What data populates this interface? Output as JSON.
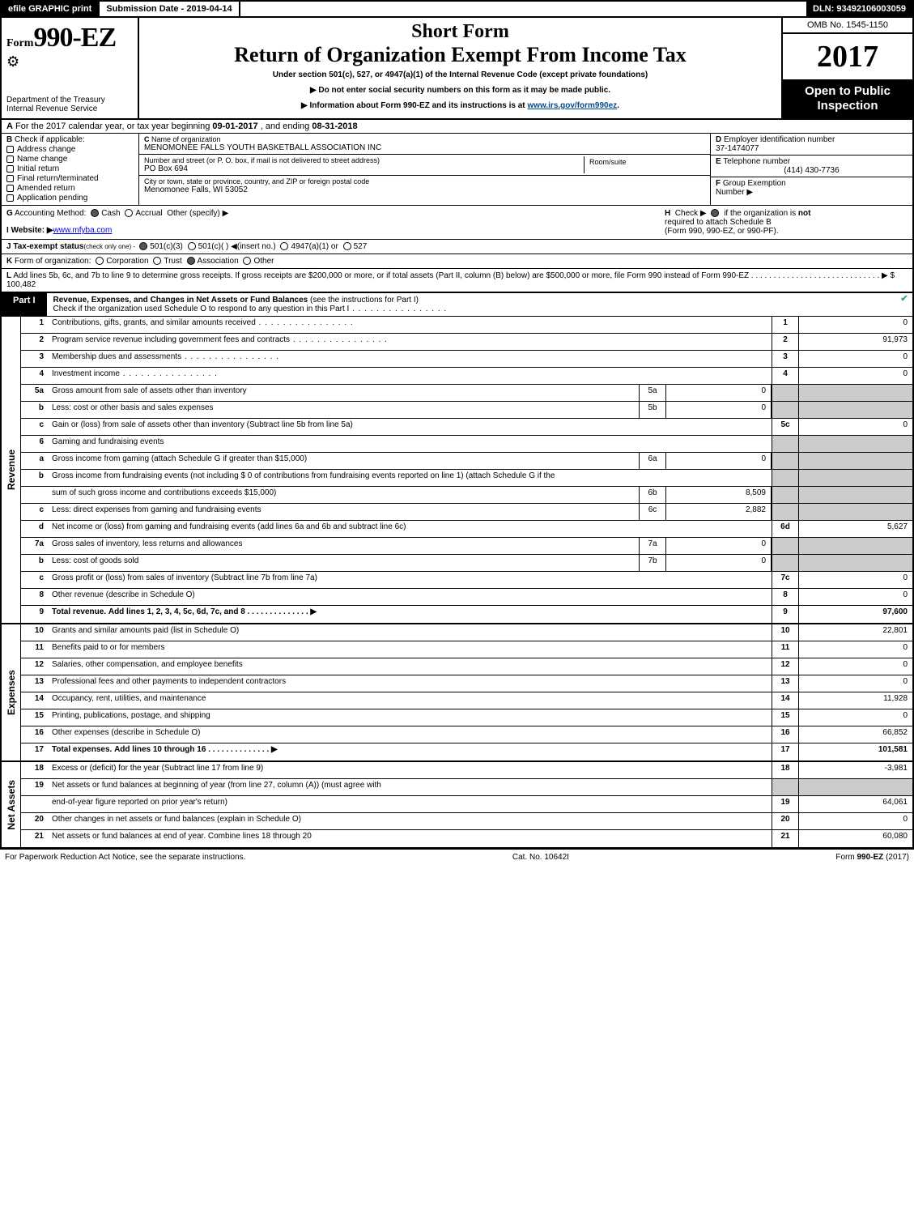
{
  "topbar": {
    "efile": "efile GRAPHIC print",
    "subdate_lbl": "Submission Date - ",
    "subdate": "2019-04-14",
    "dln_lbl": "DLN: ",
    "dln": "93492106003059"
  },
  "header": {
    "form_lbl": "Form",
    "form_num": "990-EZ",
    "dept1": "Department of the Treasury",
    "dept2": "Internal Revenue Service",
    "short": "Short Form",
    "title": "Return of Organization Exempt From Income Tax",
    "under": "Under section 501(c), 527, or 4947(a)(1) of the Internal Revenue Code (except private foundations)",
    "bullet1": "▶ Do not enter social security numbers on this form as it may be made public.",
    "bullet2_pre": "▶ Information about Form 990-EZ and its instructions is at ",
    "bullet2_link": "www.irs.gov/form990ez",
    "omb": "OMB No. 1545-1150",
    "year": "2017",
    "open1": "Open to Public",
    "open2": "Inspection"
  },
  "rowA": {
    "A": "A",
    "txt1": "For the 2017 calendar year, or tax year beginning ",
    "d1": "09-01-2017",
    "txt2": ", and ending ",
    "d2": "08-31-2018"
  },
  "entity": {
    "B": "B",
    "B_txt": "Check if applicable:",
    "checks": [
      "Address change",
      "Name change",
      "Initial return",
      "Final return/terminated",
      "Amended return",
      "Application pending"
    ],
    "C": "C",
    "C_lbl": "Name of organization",
    "C_val": "MENOMONEE FALLS YOUTH BASKETBALL ASSOCIATION INC",
    "addr_lbl": "Number and street (or P. O. box, if mail is not delivered to street address)",
    "addr_val": "PO Box 694",
    "room_lbl": "Room/suite",
    "city_lbl": "City or town, state or province, country, and ZIP or foreign postal code",
    "city_val": "Menomonee Falls, WI  53052",
    "D": "D",
    "D_lbl": "Employer identification number",
    "D_val": "37-1474077",
    "E": "E",
    "E_lbl": "Telephone number",
    "E_val": "(414) 430-7736",
    "F": "F",
    "F_lbl": "Group Exemption",
    "F_lbl2": "Number",
    "F_arr": "▶"
  },
  "mid": {
    "G": "G",
    "G_txt": "Accounting Method:",
    "G_cash": "Cash",
    "G_acc": "Accrual",
    "G_oth": "Other (specify) ▶",
    "H": "H",
    "H_txt1": "Check ▶",
    "H_txt2": "if the organization is ",
    "H_not": "not",
    "H_txt3": "required to attach Schedule B",
    "H_txt4": "(Form 990, 990-EZ, or 990-PF).",
    "I": "I",
    "I_lbl": "Website: ▶",
    "I_val": "www.mfyba.com",
    "J": "J",
    "J_txt": "Tax-exempt status",
    "J_sub": "(check only one) - ",
    "J_a": "501(c)(3)",
    "J_b": "501(c)(  )",
    "J_bi": "◀(insert no.)",
    "J_c": "4947(a)(1) or",
    "J_d": "527",
    "K": "K",
    "K_txt": "Form of organization:",
    "K_a": "Corporation",
    "K_b": "Trust",
    "K_c": "Association",
    "K_d": "Other",
    "L": "L",
    "L_txt": "Add lines 5b, 6c, and 7b to line 9 to determine gross receipts. If gross receipts are $200,000 or more, or if total assets (Part II, column (B) below) are $500,000 or more, file Form 990 instead of Form 990-EZ",
    "L_dots": " .  .  .  .  .  .  .  .  .  .  .  .  .  .  .  .  .  .  .  .  .  .  .  .  .  .  .  .  . ▶ ",
    "L_val": "$ 100,482"
  },
  "partI": {
    "lbl": "Part I",
    "title": "Revenue, Expenses, and Changes in Net Assets or Fund Balances ",
    "sub": "(see the instructions for Part I)",
    "check_line": "Check if the organization used Schedule O to respond to any question in this Part I"
  },
  "sections": {
    "revenue": {
      "label": "Revenue",
      "rows": [
        {
          "ln": "1",
          "desc": "Contributions, gifts, grants, and similar amounts received",
          "type": "main",
          "num": "1",
          "val": "0",
          "dots": 1
        },
        {
          "ln": "2",
          "desc": "Program service revenue including government fees and contracts",
          "type": "main",
          "num": "2",
          "val": "91,973",
          "dots": 1
        },
        {
          "ln": "3",
          "desc": "Membership dues and assessments",
          "type": "main",
          "num": "3",
          "val": "0",
          "dots": 1
        },
        {
          "ln": "4",
          "desc": "Investment income",
          "type": "main",
          "num": "4",
          "val": "0",
          "dots": 1
        },
        {
          "ln": "5a",
          "desc": "Gross amount from sale of assets other than inventory",
          "type": "sub",
          "subln": "5a",
          "subval": "0",
          "dots": 0,
          "sh": 1
        },
        {
          "ln": "b",
          "desc": "Less: cost or other basis and sales expenses",
          "type": "sub",
          "subln": "5b",
          "subval": "0",
          "dots": 0,
          "sh": 1
        },
        {
          "ln": "c",
          "desc": "Gain or (loss) from sale of assets other than inventory (Subtract line 5b from line 5a)",
          "type": "main",
          "num": "5c",
          "val": "0",
          "dots": 0
        },
        {
          "ln": "6",
          "desc": "Gaming and fundraising events",
          "type": "gap",
          "sh": 1
        },
        {
          "ln": "a",
          "desc": "Gross income from gaming (attach Schedule G if greater than $15,000)",
          "type": "sub",
          "subln": "6a",
          "subval": "0",
          "sh": 1
        },
        {
          "ln": "b",
          "desc": "Gross income from fundraising events (not including $  0            of contributions from fundraising events reported on line 1) (attach Schedule G if the",
          "type": "gap2",
          "sh": 1
        },
        {
          "ln": "",
          "desc": "sum of such gross income and contributions exceeds $15,000)",
          "type": "sub",
          "subln": "6b",
          "subval": "8,509",
          "sh": 1
        },
        {
          "ln": "c",
          "desc": "Less: direct expenses from gaming and fundraising events",
          "type": "sub",
          "subln": "6c",
          "subval": "2,882",
          "sh": 1
        },
        {
          "ln": "d",
          "desc": "Net income or (loss) from gaming and fundraising events (add lines 6a and 6b and subtract line 6c)",
          "type": "main",
          "num": "6d",
          "val": "5,627"
        },
        {
          "ln": "7a",
          "desc": "Gross sales of inventory, less returns and allowances",
          "type": "sub",
          "subln": "7a",
          "subval": "0",
          "sh": 1
        },
        {
          "ln": "b",
          "desc": "Less: cost of goods sold",
          "type": "sub",
          "subln": "7b",
          "subval": "0",
          "sh": 1
        },
        {
          "ln": "c",
          "desc": "Gross profit or (loss) from sales of inventory (Subtract line 7b from line 7a)",
          "type": "main",
          "num": "7c",
          "val": "0"
        },
        {
          "ln": "8",
          "desc": "Other revenue (describe in Schedule O)",
          "type": "main",
          "num": "8",
          "val": "0"
        },
        {
          "ln": "9",
          "desc": "Total revenue. Add lines 1, 2, 3, 4, 5c, 6d, 7c, and 8",
          "type": "main",
          "num": "9",
          "val": "97,600",
          "bold": 1,
          "arr": 1
        }
      ]
    },
    "expenses": {
      "label": "Expenses",
      "rows": [
        {
          "ln": "10",
          "desc": "Grants and similar amounts paid (list in Schedule O)",
          "type": "main",
          "num": "10",
          "val": "22,801"
        },
        {
          "ln": "11",
          "desc": "Benefits paid to or for members",
          "type": "main",
          "num": "11",
          "val": "0"
        },
        {
          "ln": "12",
          "desc": "Salaries, other compensation, and employee benefits",
          "type": "main",
          "num": "12",
          "val": "0"
        },
        {
          "ln": "13",
          "desc": "Professional fees and other payments to independent contractors",
          "type": "main",
          "num": "13",
          "val": "0"
        },
        {
          "ln": "14",
          "desc": "Occupancy, rent, utilities, and maintenance",
          "type": "main",
          "num": "14",
          "val": "11,928"
        },
        {
          "ln": "15",
          "desc": "Printing, publications, postage, and shipping",
          "type": "main",
          "num": "15",
          "val": "0"
        },
        {
          "ln": "16",
          "desc": "Other expenses (describe in Schedule O)",
          "type": "main",
          "num": "16",
          "val": "66,852"
        },
        {
          "ln": "17",
          "desc": "Total expenses. Add lines 10 through 16",
          "type": "main",
          "num": "17",
          "val": "101,581",
          "bold": 1,
          "arr": 1
        }
      ]
    },
    "netassets": {
      "label": "Net Assets",
      "rows": [
        {
          "ln": "18",
          "desc": "Excess or (deficit) for the year (Subtract line 17 from line 9)",
          "type": "main",
          "num": "18",
          "val": "-3,981"
        },
        {
          "ln": "19",
          "desc": "Net assets or fund balances at beginning of year (from line 27, column (A)) (must agree with",
          "type": "gap",
          "sh": 1
        },
        {
          "ln": "",
          "desc": "end-of-year figure reported on prior year's return)",
          "type": "main",
          "num": "19",
          "val": "64,061"
        },
        {
          "ln": "20",
          "desc": "Other changes in net assets or fund balances (explain in Schedule O)",
          "type": "main",
          "num": "20",
          "val": "0"
        },
        {
          "ln": "21",
          "desc": "Net assets or fund balances at end of year. Combine lines 18 through 20",
          "type": "main",
          "num": "21",
          "val": "60,080"
        }
      ]
    }
  },
  "footer": {
    "left": "For Paperwork Reduction Act Notice, see the separate instructions.",
    "cat": "Cat. No. 10642I",
    "right_pre": "Form ",
    "right_b": "990-EZ",
    "right_post": " (2017)"
  }
}
